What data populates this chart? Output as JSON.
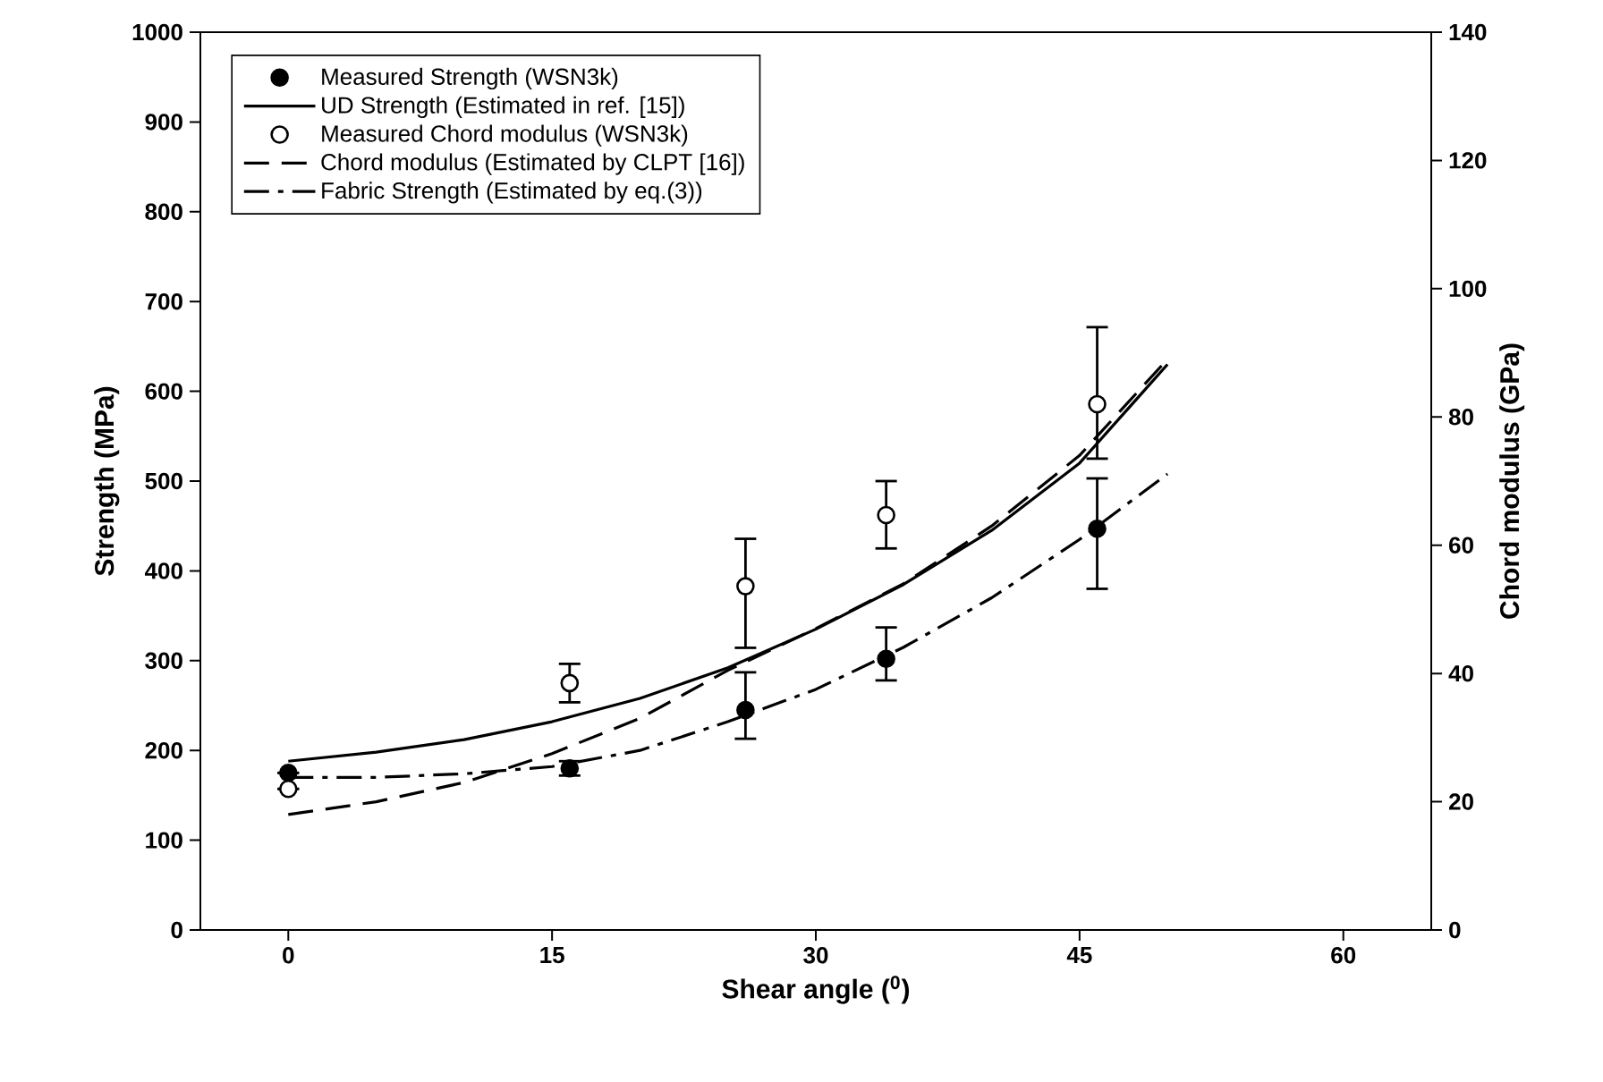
{
  "chart_data": {
    "type": "line",
    "xlabel": "Shear angle ($^{0}$)",
    "ylabel": "Strength (MPa)",
    "y2label": "Chord modulus (GPa)",
    "xlim": [
      -5,
      65
    ],
    "xticks": [
      0,
      15,
      30,
      45,
      60
    ],
    "ylim": [
      0,
      1000
    ],
    "yticks": [
      0,
      100,
      200,
      300,
      400,
      500,
      600,
      700,
      800,
      900,
      1000
    ],
    "y2lim": [
      0,
      140
    ],
    "y2ticks": [
      0,
      20,
      40,
      60,
      80,
      100,
      120,
      140
    ],
    "legend": "top left",
    "series": [
      {
        "name": "Measured Strength (WSN3k)",
        "type": "scatter",
        "color": "#000000",
        "x": [
          0,
          16,
          26,
          34,
          46
        ],
        "values": [
          175,
          180,
          245,
          302,
          447
        ],
        "errors": [
          null,
          [
            172,
            188
          ],
          [
            213,
            287
          ],
          [
            278,
            337
          ],
          [
            380,
            503
          ]
        ]
      },
      {
        "name": "UD Strength (Estimated in ref. [15])",
        "line_style": "solid",
        "color": "#000000",
        "x": [
          0,
          5,
          10,
          15,
          20,
          25,
          30,
          35,
          40,
          45,
          50
        ],
        "values": [
          188,
          198,
          212,
          232,
          258,
          292,
          335,
          385,
          445,
          520,
          630
        ]
      },
      {
        "name": "Measured Chord modulus (WSN3k)",
        "type": "scatter",
        "color": "#ffffff",
        "axis": "y2",
        "x": [
          0,
          16,
          26,
          34,
          46
        ],
        "values": [
          22,
          38.5,
          53.6,
          64.7,
          82
        ],
        "errors": [
          null,
          [
            35.5,
            41.5
          ],
          [
            44,
            61
          ],
          [
            59.5,
            70
          ],
          [
            73.5,
            94
          ]
        ]
      },
      {
        "name": "Chord modulus (Estimated by CLPT [16])",
        "line_style": "dashed",
        "color": "#000000",
        "axis": "y2",
        "x": [
          0,
          5,
          10,
          15,
          20,
          25,
          30,
          35,
          40,
          45,
          50
        ],
        "values": [
          18,
          20,
          23,
          27.5,
          33,
          40.5,
          47,
          54,
          63,
          74,
          89
        ]
      },
      {
        "name": "Fabric Strength (Estimated by eq.(3))",
        "line_style": "dashdot",
        "color": "#000000",
        "x": [
          0,
          5,
          10,
          15,
          20,
          25,
          30,
          35,
          40,
          45,
          50
        ],
        "values": [
          170,
          170,
          174,
          182,
          200,
          232,
          268,
          315,
          370,
          435,
          508
        ]
      }
    ]
  }
}
